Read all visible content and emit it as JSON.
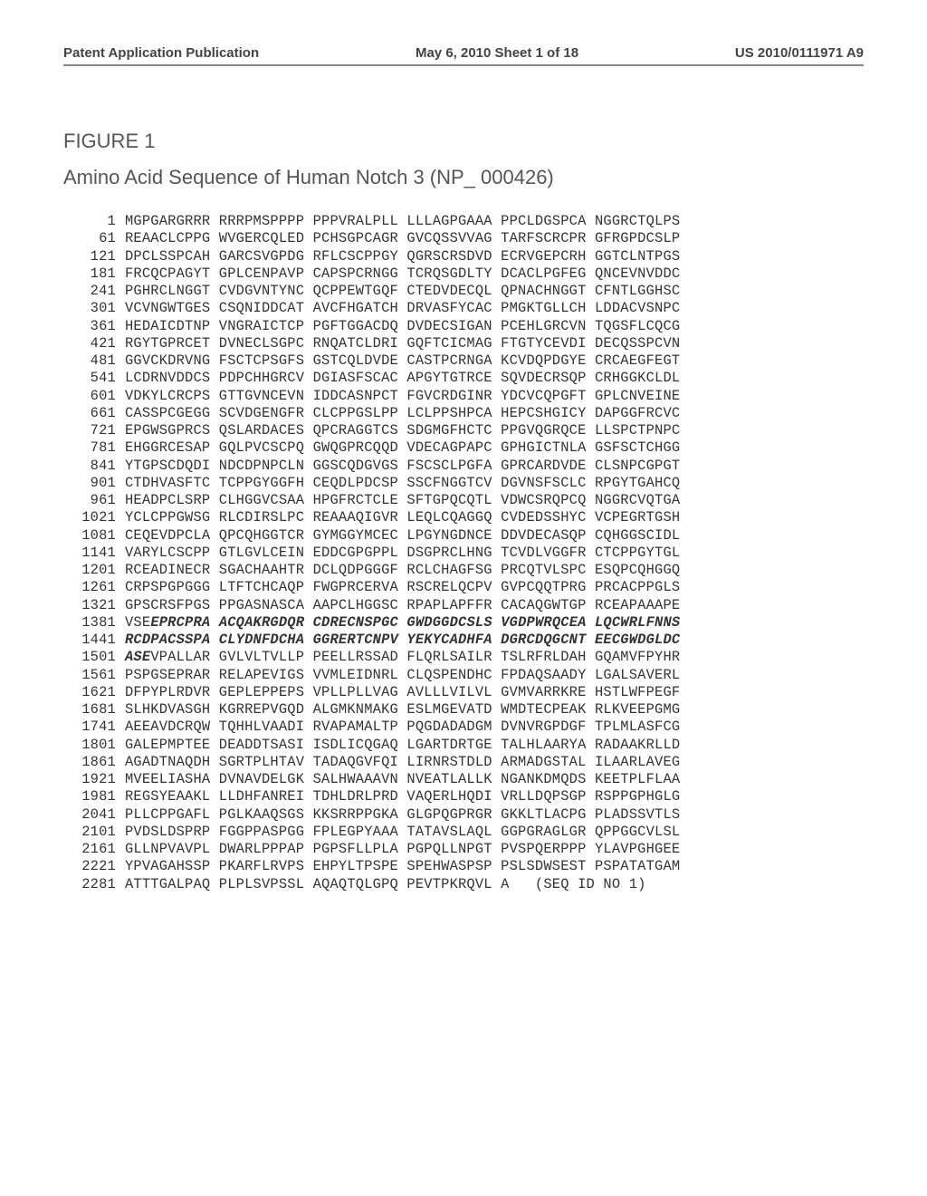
{
  "header": {
    "left": "Patent Application Publication",
    "center": "May 6, 2010  Sheet 1 of 18",
    "right": "US 2010/0111971 A9"
  },
  "figure": {
    "title": "FIGURE 1",
    "subtitle": "Amino Acid Sequence of Human Notch 3  (NP_ 000426)"
  },
  "sequence": {
    "rows": [
      {
        "pos": 1,
        "blocks": [
          "MGPGARGRRR",
          "RRRPMSPPPP",
          "PPPVRALPLL",
          "LLLAGPGAAA",
          "PPCLDGSPCA",
          "NGGRCTQLPS"
        ]
      },
      {
        "pos": 61,
        "blocks": [
          "REAACLCPPG",
          "WVGERCQLED",
          "PCHSGPCAGR",
          "GVCQSSVVAG",
          "TARFSCRCPR",
          "GFRGPDCSLP"
        ]
      },
      {
        "pos": 121,
        "blocks": [
          "DPCLSSPCAH",
          "GARCSVGPDG",
          "RFLCSCPPGY",
          "QGRSCRSDVD",
          "ECRVGEPCRH",
          "GGTCLNTPGS"
        ]
      },
      {
        "pos": 181,
        "blocks": [
          "FRCQCPAGYT",
          "GPLCENPAVP",
          "CAPSPCRNGG",
          "TCRQSGDLTY",
          "DCACLPGFEG",
          "QNCEVNVDDC"
        ]
      },
      {
        "pos": 241,
        "blocks": [
          "PGHRCLNGGT",
          "CVDGVNTYNC",
          "QCPPEWTGQF",
          "CTEDVDECQL",
          "QPNACHNGGT",
          "CFNTLGGHSC"
        ]
      },
      {
        "pos": 301,
        "blocks": [
          "VCVNGWTGES",
          "CSQNIDDCAT",
          "AVCFHGATCH",
          "DRVASFYCAC",
          "PMGKTGLLCH",
          "LDDACVSNPC"
        ]
      },
      {
        "pos": 361,
        "blocks": [
          "HEDAICDTNP",
          "VNGRAICTCP",
          "PGFTGGACDQ",
          "DVDECSIGAN",
          "PCEHLGRCVN",
          "TQGSFLCQCG"
        ]
      },
      {
        "pos": 421,
        "blocks": [
          "RGYTGPRCET",
          "DVNECLSGPC",
          "RNQATCLDRI",
          "GQFTCICMAG",
          "FTGTYCEVDI",
          "DECQSSPCVN"
        ]
      },
      {
        "pos": 481,
        "blocks": [
          "GGVCKDRVNG",
          "FSCTCPSGFS",
          "GSTCQLDVDE",
          "CASTPCRNGA",
          "KCVDQPDGYE",
          "CRCAEGFEGT"
        ]
      },
      {
        "pos": 541,
        "blocks": [
          "LCDRNVDDCS",
          "PDPCHHGRCV",
          "DGIASFSCAC",
          "APGYTGTRCE",
          "SQVDECRSQP",
          "CRHGGKCLDL"
        ]
      },
      {
        "pos": 601,
        "blocks": [
          "VDKYLCRCPS",
          "GTTGVNCEVN",
          "IDDCASNPCT",
          "FGVCRDGINR",
          "YDCVCQPGFT",
          "GPLCNVEINE"
        ]
      },
      {
        "pos": 661,
        "blocks": [
          "CASSPCGEGG",
          "SCVDGENGFR",
          "CLCPPGSLPP",
          "LCLPPSHPCA",
          "HEPCSHGICY",
          "DAPGGFRCVC"
        ]
      },
      {
        "pos": 721,
        "blocks": [
          "EPGWSGPRCS",
          "QSLARDACES",
          "QPCRAGGTCS",
          "SDGMGFHCTC",
          "PPGVQGRQCE",
          "LLSPCTPNPC"
        ]
      },
      {
        "pos": 781,
        "blocks": [
          "EHGGRCESAP",
          "GQLPVCSCPQ",
          "GWQGPRCQQD",
          "VDECAGPAPC",
          "GPHGICTNLA",
          "GSFSCTCHGG"
        ]
      },
      {
        "pos": 841,
        "blocks": [
          "YTGPSCDQDI",
          "NDCDPNPCLN",
          "GGSCQDGVGS",
          "FSCSCLPGFA",
          "GPRCARDVDE",
          "CLSNPCGPGT"
        ]
      },
      {
        "pos": 901,
        "blocks": [
          "CTDHVASFTC",
          "TCPPGYGGFH",
          "CEQDLPDCSP",
          "SSCFNGGTCV",
          "DGVNSFSCLC",
          "RPGYTGAHCQ"
        ]
      },
      {
        "pos": 961,
        "blocks": [
          "HEADPCLSRP",
          "CLHGGVCSAA",
          "HPGFRCTCLE",
          "SFTGPQCQTL",
          "VDWCSRQPCQ",
          "NGGRCVQTGA"
        ]
      },
      {
        "pos": 1021,
        "blocks": [
          "YCLCPPGWSG",
          "RLCDIRSLPC",
          "REAAAQIGVR",
          "LEQLCQAGGQ",
          "CVDEDSSHYC",
          "VCPEGRTGSH"
        ]
      },
      {
        "pos": 1081,
        "blocks": [
          "CEQEVDPCLA",
          "QPCQHGGTCR",
          "GYMGGYMCEC",
          "LPGYNGDNCE",
          "DDVDECASQP",
          "CQHGGSCIDL"
        ]
      },
      {
        "pos": 1141,
        "blocks": [
          "VARYLCSCPP",
          "GTLGVLCEIN",
          "EDDCGPGPPL",
          "DSGPRCLHNG",
          "TCVDLVGGFR",
          "CTCPPGYTGL"
        ]
      },
      {
        "pos": 1201,
        "blocks": [
          "RCEADINECR",
          "SGACHAAHTR",
          "DCLQDPGGGF",
          "RCLCHAGFSG",
          "PRCQTVLSPC",
          "ESQPCQHGGQ"
        ]
      },
      {
        "pos": 1261,
        "blocks": [
          "CRPSPGPGGG",
          "LTFTCHCAQP",
          "FWGPRCERVA",
          "RSCRELQCPV",
          "GVPCQQTPRG",
          "PRCACPPGLS"
        ]
      },
      {
        "pos": 1321,
        "blocks": [
          "GPSCRSFPGS",
          "PPGASNASCA",
          "AAPCLHGGSC",
          "RPAPLAPFFR",
          "CACAQGWTGP",
          "RCEAPAAAPE"
        ]
      },
      {
        "pos": 1381,
        "bold": true,
        "prefix": "VSE",
        "blocks": [
          "EPRCPRA",
          "ACQAKRGDQR",
          "CDRECNSPGC",
          "GWDGGDCSLS",
          "VGDPWRQCEA",
          "LQCWRLFNNS"
        ]
      },
      {
        "pos": 1441,
        "bold": true,
        "blocks": [
          "RCDPACSSPA",
          "CLYDNFDCHA",
          "GGRERTCNPV",
          "YEKYCADHFA",
          "DGRCDQGCNT",
          "EECGWDGLDC"
        ]
      },
      {
        "pos": 1501,
        "boldPrefix": "ASE",
        "blocks": [
          "VPALLAR",
          "GVLVLTVLLP",
          "PEELLRSSAD",
          "FLQRLSAILR",
          "TSLRFRLDAH",
          "GQAMVFPYHR"
        ]
      },
      {
        "pos": 1561,
        "blocks": [
          "PSPGSEPRAR",
          "RELAPEVIGS",
          "VVMLEIDNRL",
          "CLQSPENDHC",
          "FPDAQSAADY",
          "LGALSAVERL"
        ]
      },
      {
        "pos": 1621,
        "blocks": [
          "DFPYPLRDVR",
          "GEPLEPPEPS",
          "VPLLPLLVAG",
          "AVLLLVILVL",
          "GVMVARRKRE",
          "HSTLWFPEGF"
        ]
      },
      {
        "pos": 1681,
        "blocks": [
          "SLHKDVASGH",
          "KGRREPVGQD",
          "ALGMKNMAKG",
          "ESLMGEVATD",
          "WMDTECPEAK",
          "RLKVEEPGMG"
        ]
      },
      {
        "pos": 1741,
        "blocks": [
          "AEEAVDCRQW",
          "TQHHLVAADI",
          "RVAPAMALTP",
          "PQGDADADGM",
          "DVNVRGPDGF",
          "TPLMLASFCG"
        ]
      },
      {
        "pos": 1801,
        "blocks": [
          "GALEPMPTEE",
          "DEADDTSASI",
          "ISDLICQGAQ",
          "LGARTDRTGE",
          "TALHLAARYA",
          "RADAAKRLLD"
        ]
      },
      {
        "pos": 1861,
        "blocks": [
          "AGADTNAQDH",
          "SGRTPLHTAV",
          "TADAQGVFQI",
          "LIRNRSTDLD",
          "ARMADGSTAL",
          "ILAARLAVEG"
        ]
      },
      {
        "pos": 1921,
        "blocks": [
          "MVEELIASHA",
          "DVNAVDELGK",
          "SALHWAAAVN",
          "NVEATLALLK",
          "NGANKDMQDS",
          "KEETPLFLAA"
        ]
      },
      {
        "pos": 1981,
        "blocks": [
          "REGSYEAAKL",
          "LLDHFANREI",
          "TDHLDRLPRD",
          "VAQERLHQDI",
          "VRLLDQPSGP",
          "RSPPGPHGLG"
        ]
      },
      {
        "pos": 2041,
        "blocks": [
          "PLLCPPGAFL",
          "PGLKAAQSGS",
          "KKSRRPPGKA",
          "GLGPQGPRGR",
          "GKKLTLACPG",
          "PLADSSVTLS"
        ]
      },
      {
        "pos": 2101,
        "blocks": [
          "PVDSLDSPRP",
          "FGGPPASPGG",
          "FPLEGPYAAA",
          "TATAVSLAQL",
          "GGPGRAGLGR",
          "QPPGGCVLSL"
        ]
      },
      {
        "pos": 2161,
        "blocks": [
          "GLLNPVAVPL",
          "DWARLPPPAP",
          "PGPSFLLPLA",
          "PGPQLLNPGT",
          "PVSPQERPPP",
          "YLAVPGHGEE"
        ]
      },
      {
        "pos": 2221,
        "blocks": [
          "YPVAGAHSSP",
          "PKARFLRVPS",
          "EHPYLTPSPE",
          "SPEHWASPSP",
          "PSLSDWSEST",
          "PSPATATGAM"
        ]
      },
      {
        "pos": 2281,
        "blocks": [
          "ATTTGALPAQ",
          "PLPLSVPSSL",
          "AQAQTQLGPQ",
          "PEVTPKRQVL",
          "A   (SEQ ID",
          "NO 1)"
        ]
      }
    ]
  }
}
